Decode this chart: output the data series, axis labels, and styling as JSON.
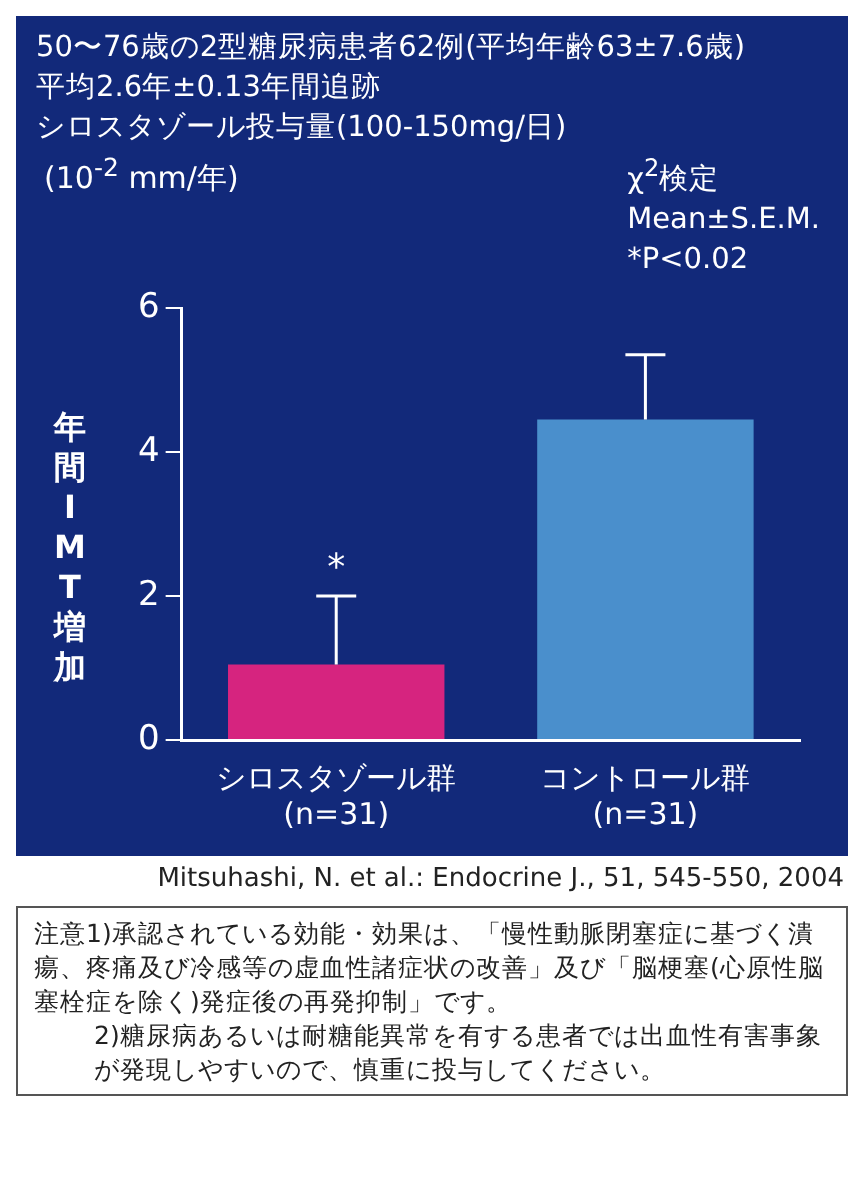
{
  "chart_data": {
    "type": "bar",
    "title": "50〜76歳の2型糖尿病患者62例(平均年齢63±7.6歳)",
    "subtitle": "平均2.6年±0.13年間追跡",
    "ylabel": "年間IMT増加",
    "categories": [
      "シロスタゾール群\n(n=31)",
      "コントロール群\n(n=31)"
    ],
    "series": [
      {
        "colors": [
          "#d6247f",
          "#4a8fcc"
        ],
        "values": [
          1.05,
          4.45
        ],
        "errors": [
          [
            1.05,
            2.0
          ],
          [
            4.45,
            5.35
          ]
        ]
      }
    ],
    "ylim": [
      0,
      6
    ],
    "yticks": [
      0,
      2,
      4,
      6
    ],
    "annotations": [
      "シロスタゾール投与量(100-150mg/日)",
      "(10$^{-2}$ mm/年)",
      "χ$^{2}$検定",
      "Mean±S.E.M.",
      "*P<0.02",
      {
        "text": "*",
        "x": "シロスタゾール群\n(n=31)",
        "y": 2.0
      },
      "Mitsuhashi, N. et al.: Endocrine J., 51, 545-550, 2004",
      "注意1)承認されている効能・効果は、「慢性動脈閉塞症に基づく潰瘍、疼痛及び冷感等の虚血性諸症状の改善」及び「脳梗塞(心原性脳塞栓症を除く)発症後の再発抑制」です。",
      "2)糖尿病あるいは耐糖能異常を有する患者では出血性有害事象が発現しやすいので、慎重に投与してください。"
    ]
  }
}
